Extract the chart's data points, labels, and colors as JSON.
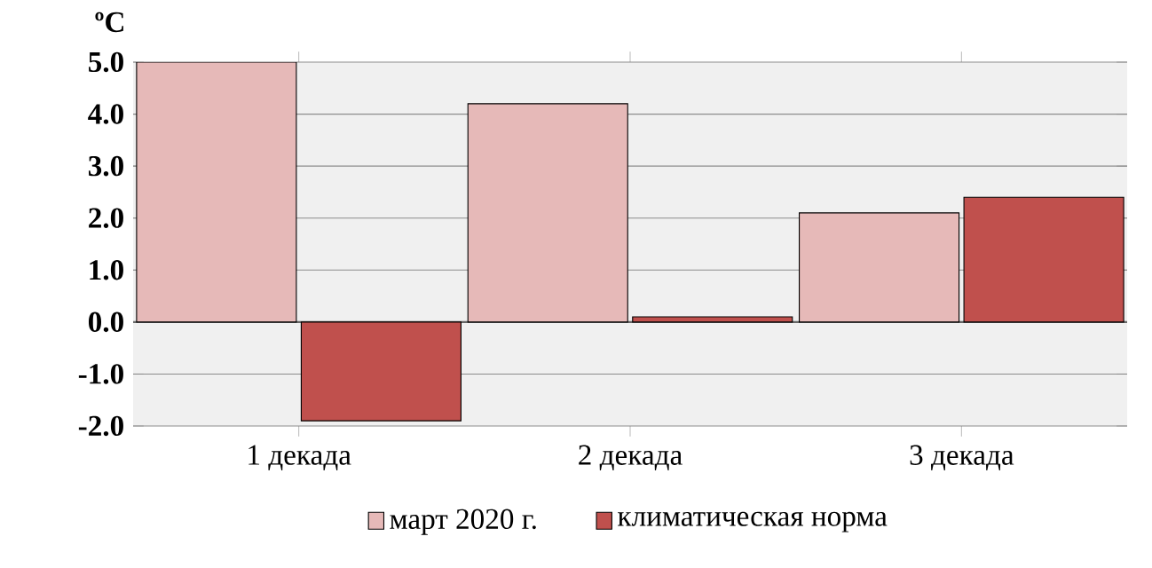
{
  "chart_data": {
    "type": "bar",
    "ylabel": "ºC",
    "categories": [
      "1 декада",
      "2 декада",
      "3 декада"
    ],
    "series": [
      {
        "name": "март 2020 г.",
        "color": "#e6b9b8",
        "values": [
          5.0,
          4.2,
          2.1
        ]
      },
      {
        "name": "климатическая норма",
        "color": "#c0504d",
        "values": [
          -1.9,
          0.1,
          2.4
        ]
      }
    ],
    "ylim": [
      -2,
      5
    ],
    "yticks": [
      {
        "value": -2,
        "label": "-2.0"
      },
      {
        "value": -1,
        "label": "-1.0"
      },
      {
        "value": 0,
        "label": "0.0"
      },
      {
        "value": 1,
        "label": "1.0"
      },
      {
        "value": 2,
        "label": "2.0"
      },
      {
        "value": 3,
        "label": "3.0"
      },
      {
        "value": 4,
        "label": "4.0"
      },
      {
        "value": 5,
        "label": "5.0"
      }
    ],
    "grid": "y",
    "legend": "bottom"
  }
}
